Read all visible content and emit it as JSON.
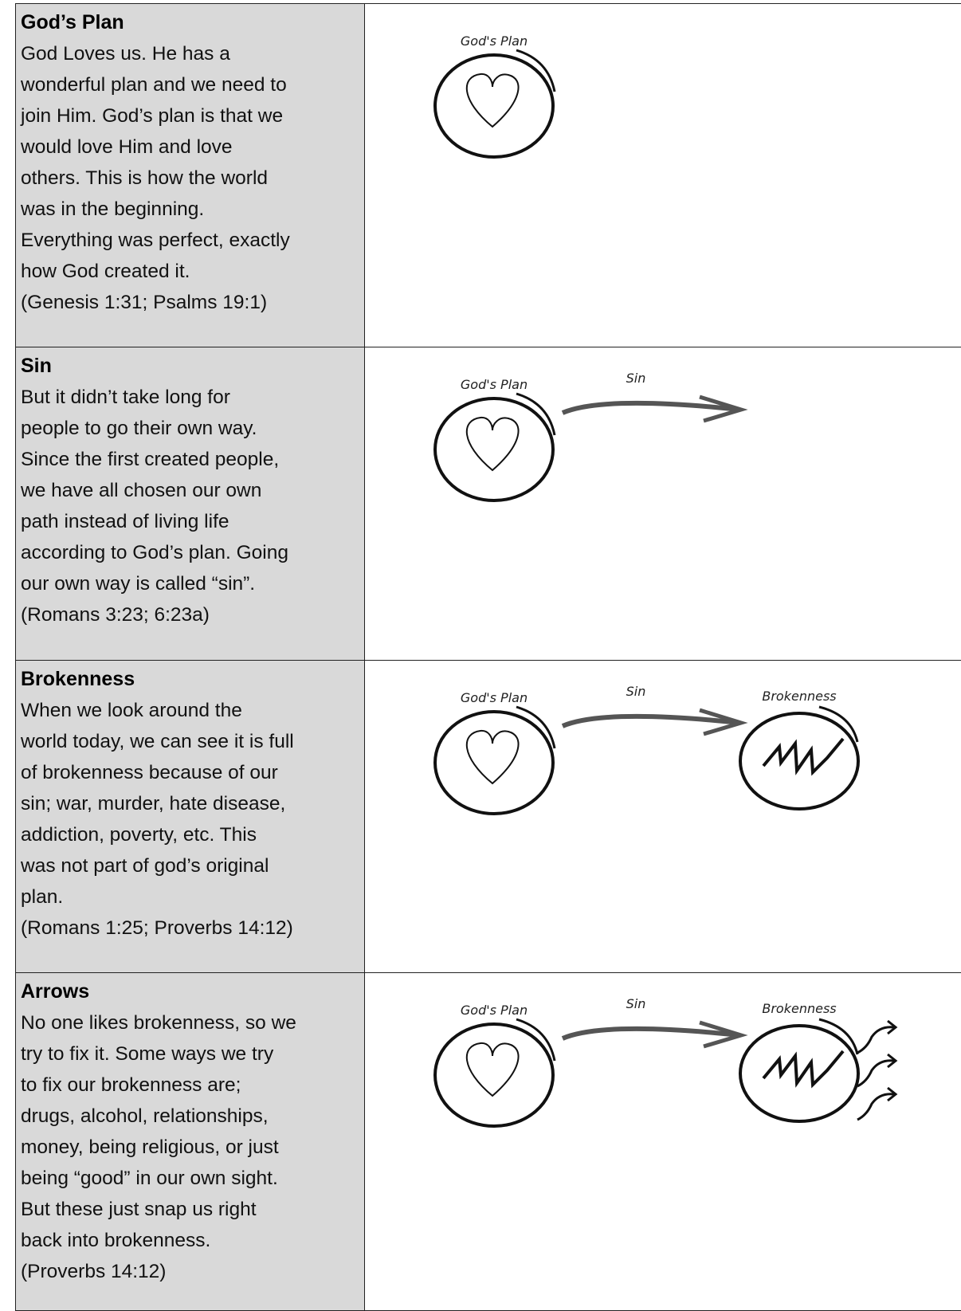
{
  "rows": [
    {
      "title": "God’s Plan",
      "lines": [
        "God Loves us. He has a",
        "wonderful plan and we need to",
        "join Him. God’s plan is that we",
        "would love Him and love",
        "others. This is how the world",
        "was in the beginning.",
        "Everything was perfect, exactly",
        "how God created it."
      ],
      "reference": "(Genesis 1:31; Psalms 19:1)",
      "diagram": {
        "plan": "God's Plan"
      }
    },
    {
      "title": "Sin",
      "lines": [
        "But it didn’t take long for",
        "people to go their own way.",
        "Since the first created people,",
        "we have all chosen our own",
        "path instead of living life",
        "according to God’s plan. Going",
        "our own way is called “sin”."
      ],
      "reference": "(Romans 3:23; 6:23a)",
      "diagram": {
        "plan": "God's Plan",
        "sin": "Sin"
      }
    },
    {
      "title": "Brokenness",
      "lines": [
        "When we look around the",
        "world today, we can see it is full",
        "of brokenness because of our",
        "sin; war, murder, hate disease,",
        "addiction, poverty, etc. This",
        "was not part of god’s original",
        "plan."
      ],
      "reference": "(Romans 1:25; Proverbs 14:12)",
      "diagram": {
        "plan": "God's Plan",
        "sin": "Sin",
        "brokenness": "Brokenness"
      }
    },
    {
      "title": "Arrows",
      "lines": [
        "No one likes brokenness, so we",
        "try to fix it. Some ways we try",
        "to fix our brokenness are;",
        "drugs, alcohol, relationships,",
        "money, being religious, or just",
        "being “good” in our own sight.",
        "But these just snap us right",
        "back into brokenness."
      ],
      "reference": "(Proverbs 14:12)",
      "diagram": {
        "plan": "God's Plan",
        "sin": "Sin",
        "brokenness": "Brokenness",
        "arrows": true
      }
    }
  ]
}
